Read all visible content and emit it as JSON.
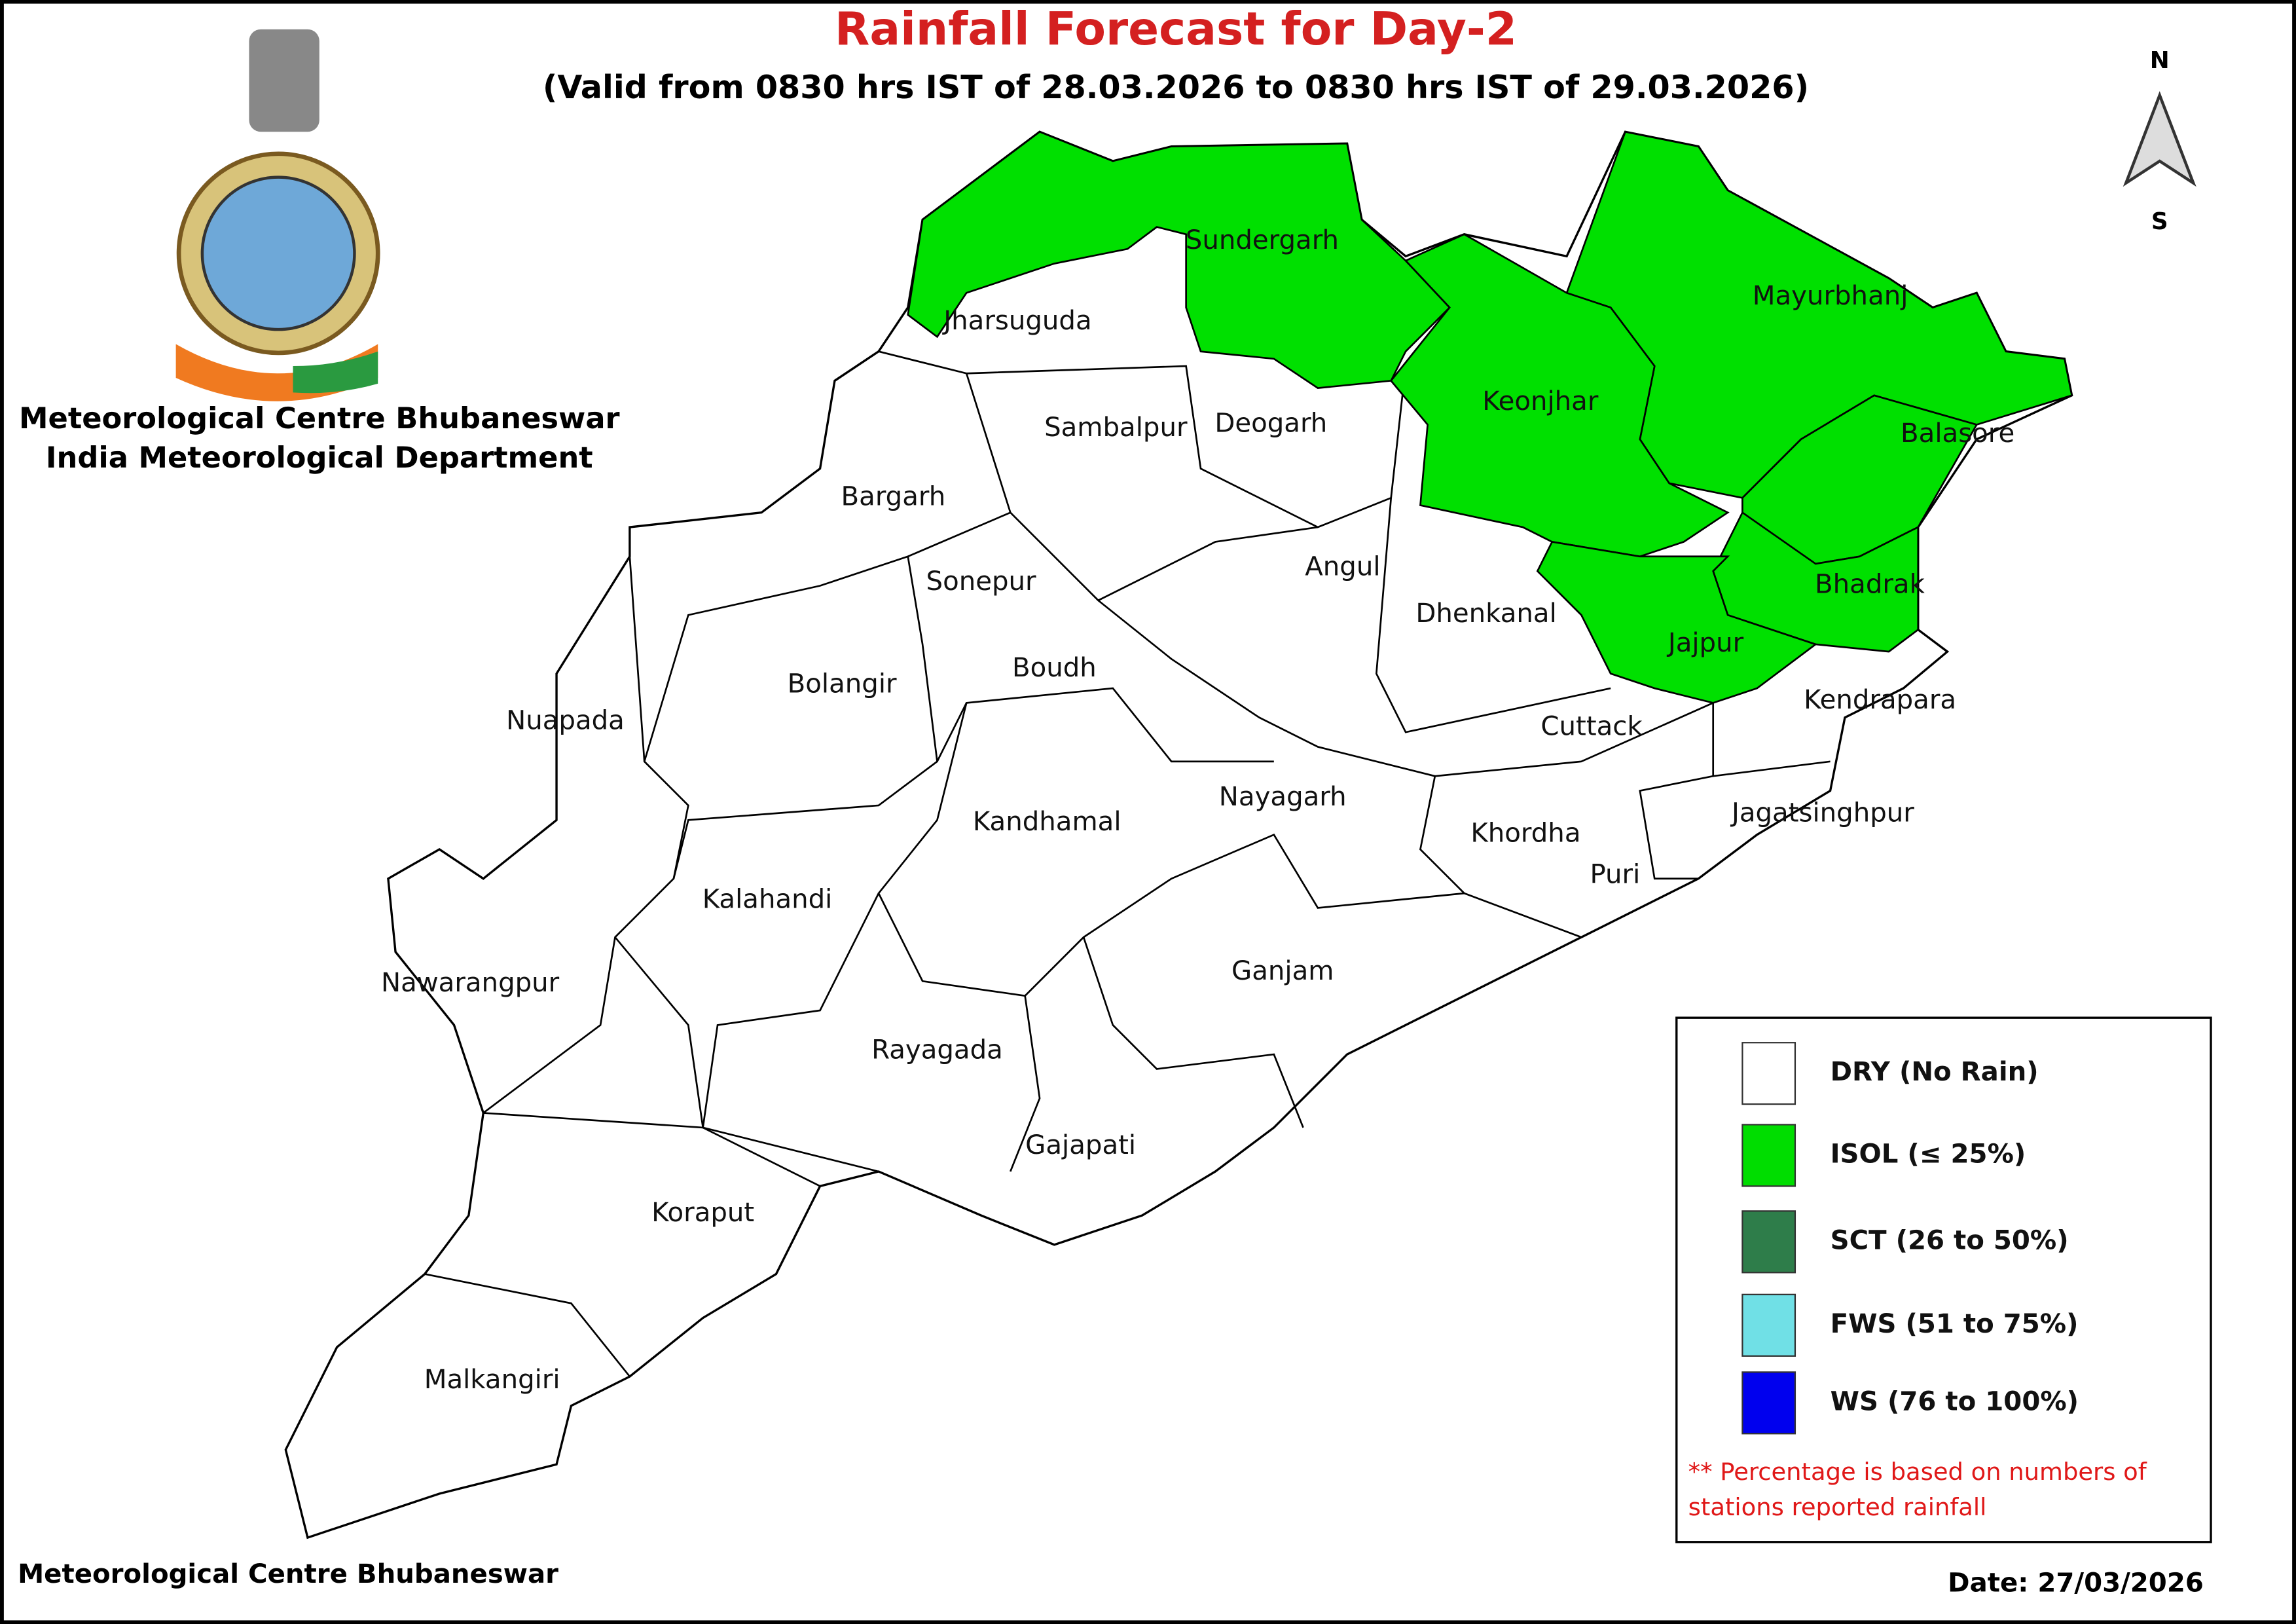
{
  "header": {
    "title": "Rainfall Forecast for Day-2",
    "subtitle": "(Valid from 0830 hrs IST of 28.03.2026 to 0830 hrs IST of 29.03.2026)"
  },
  "organization": [
    "Meteorological Centre Bhubaneswar",
    "India Meteorological Department"
  ],
  "compass": {
    "north": "N",
    "south": "S"
  },
  "districts": [
    {
      "name": "Jharsuguda"
    },
    {
      "name": "Sundergarh",
      "color": "#00e000"
    },
    {
      "name": "Mayurbhanj",
      "color": "#00e000"
    },
    {
      "name": "Sambalpur"
    },
    {
      "name": "Deogarh"
    },
    {
      "name": "Keonjhar",
      "color": "#00e000"
    },
    {
      "name": "Balasore",
      "color": "#00e000"
    },
    {
      "name": "Bargarh"
    },
    {
      "name": "Sonepur"
    },
    {
      "name": "Angul"
    },
    {
      "name": "Dhenkanal"
    },
    {
      "name": "Bhadrak",
      "color": "#00e000"
    },
    {
      "name": "Jajpur",
      "color": "#00e000"
    },
    {
      "name": "Bolangir"
    },
    {
      "name": "Boudh"
    },
    {
      "name": "Nuapada"
    },
    {
      "name": "Cuttack"
    },
    {
      "name": "Kendrapara"
    },
    {
      "name": "Nayagarh"
    },
    {
      "name": "Kandhamal"
    },
    {
      "name": "Khordha"
    },
    {
      "name": "Jagatsinghpur"
    },
    {
      "name": "Puri"
    },
    {
      "name": "Kalahandi"
    },
    {
      "name": "Ganjam"
    },
    {
      "name": "Nawarangpur"
    },
    {
      "name": "Rayagada"
    },
    {
      "name": "Gajapati"
    },
    {
      "name": "Koraput"
    },
    {
      "name": "Malkangiri"
    }
  ],
  "legend": {
    "items": [
      {
        "label": "DRY (No Rain)",
        "color": "#ffffff"
      },
      {
        "label": "ISOL (≤ 25%)",
        "color": "#00dd00"
      },
      {
        "label": "SCT (26 to 50%)",
        "color": "#2e7d4a"
      },
      {
        "label": "FWS (51 to 75%)",
        "color": "#70e0e6"
      },
      {
        "label": "WS (76 to 100%)",
        "color": "#0000ee"
      }
    ],
    "note": [
      "** Percentage is based on numbers of",
      "stations reported rainfall"
    ]
  },
  "footer": {
    "left": "Meteorological Centre Bhubaneswar",
    "date": "Date: 27/03/2026"
  }
}
